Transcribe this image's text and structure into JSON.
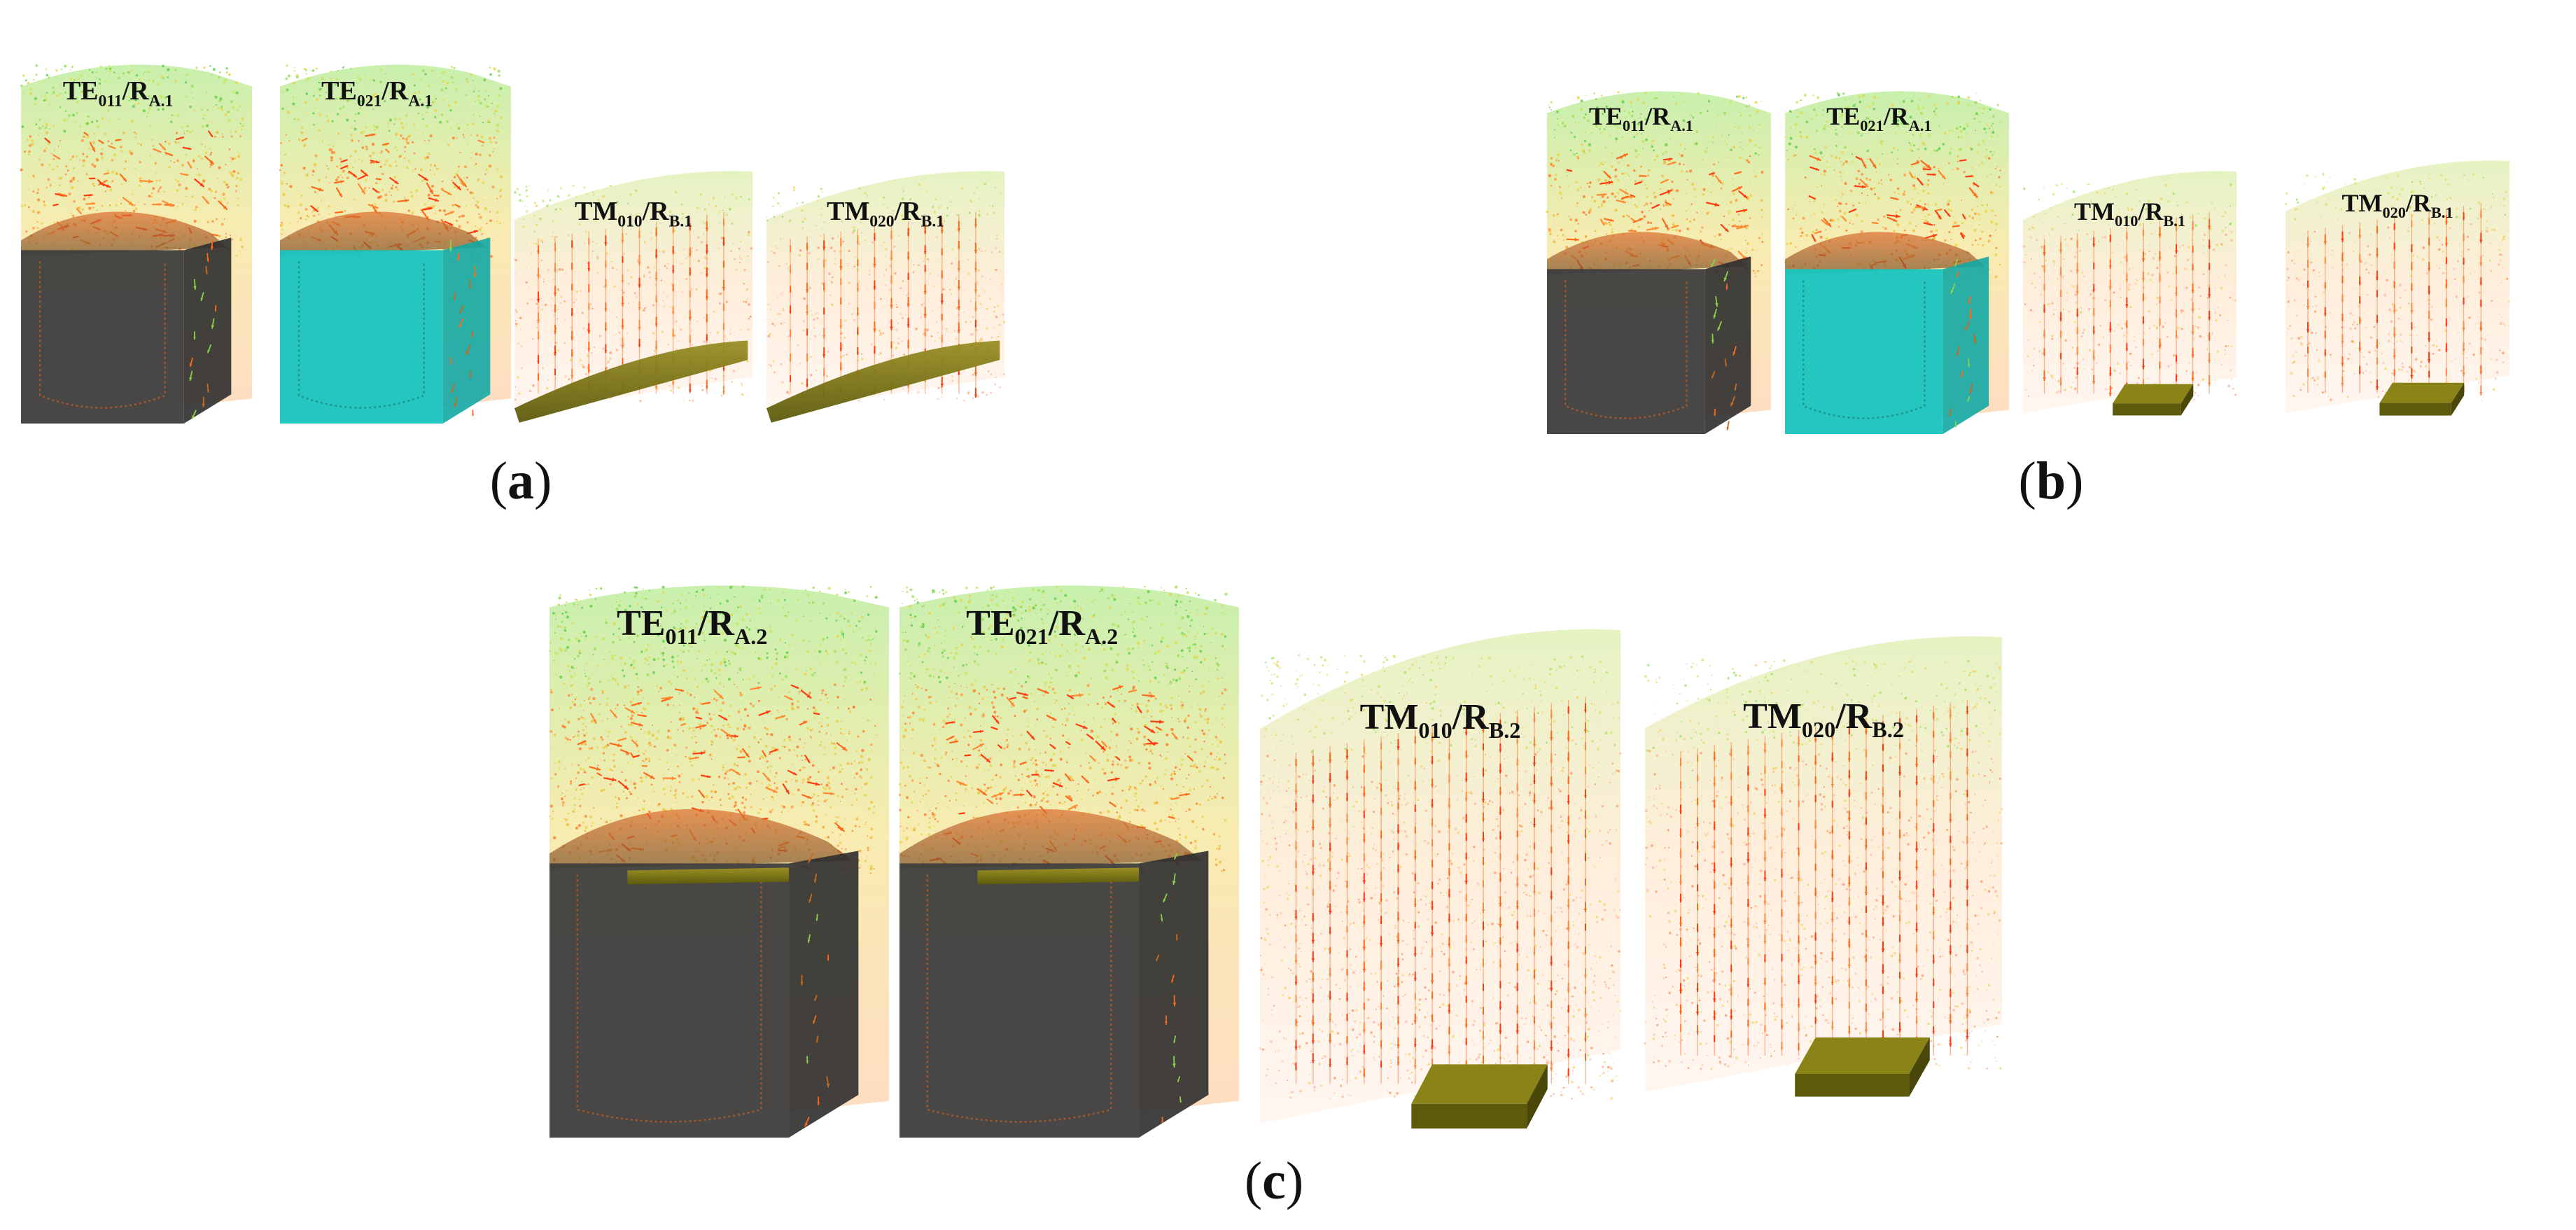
{
  "colors": {
    "field_green": "#7ed957",
    "field_yellow": "#e8d44a",
    "field_orange": "#ff6a1a",
    "arrow_red": "#ff3b10",
    "dielectric_dark": "#3e3e3e",
    "dielectric_cyan": "#19c4c0",
    "patch_olive": "#6e6b10"
  },
  "panels": [
    {
      "id": "a",
      "label": "a",
      "modes": [
        {
          "base": "TE",
          "mode": "011",
          "sep": "/",
          "res": "R",
          "res_sub": "A.1",
          "kind": "te",
          "fill": "dark"
        },
        {
          "base": "TE",
          "mode": "021",
          "sep": "/",
          "res": "R",
          "res_sub": "A.1",
          "kind": "te",
          "fill": "cyan"
        },
        {
          "base": "TM",
          "mode": "010",
          "sep": "/",
          "res": "R",
          "res_sub": "B.1",
          "kind": "tm",
          "fill": "wide-patch"
        },
        {
          "base": "TM",
          "mode": "020",
          "sep": "/",
          "res": "R",
          "res_sub": "B.1",
          "kind": "tm",
          "fill": "wide-patch"
        }
      ]
    },
    {
      "id": "b",
      "label": "b",
      "modes": [
        {
          "base": "TE",
          "mode": "011",
          "sep": "/",
          "res": "R",
          "res_sub": "A.1",
          "kind": "te",
          "fill": "dark"
        },
        {
          "base": "TE",
          "mode": "021",
          "sep": "/",
          "res": "R",
          "res_sub": "A.1",
          "kind": "te",
          "fill": "cyan"
        },
        {
          "base": "TM",
          "mode": "010",
          "sep": "/",
          "res": "R",
          "res_sub": "B.1",
          "kind": "tm",
          "fill": "small-patch"
        },
        {
          "base": "TM",
          "mode": "020",
          "sep": "/",
          "res": "R",
          "res_sub": "B.1",
          "kind": "tm",
          "fill": "small-patch"
        }
      ]
    },
    {
      "id": "c",
      "label": "c",
      "modes": [
        {
          "base": "TE",
          "mode": "011",
          "sep": "/",
          "res": "R",
          "res_sub": "A.2",
          "kind": "te",
          "fill": "dark"
        },
        {
          "base": "TE",
          "mode": "021",
          "sep": "/",
          "res": "R",
          "res_sub": "A.2",
          "kind": "te",
          "fill": "dark"
        },
        {
          "base": "TM",
          "mode": "010",
          "sep": "/",
          "res": "R",
          "res_sub": "B.2",
          "kind": "tm",
          "fill": "small-patch"
        },
        {
          "base": "TM",
          "mode": "020",
          "sep": "/",
          "res": "R",
          "res_sub": "B.2",
          "kind": "tm",
          "fill": "small-patch"
        }
      ]
    }
  ]
}
